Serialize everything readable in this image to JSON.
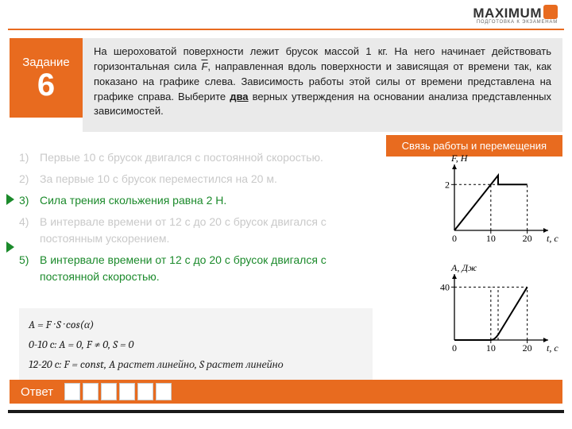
{
  "logo": {
    "text": "MAXIMUM",
    "subtitle": "ПОДГОТОВКА К ЭКЗАМЕНАМ"
  },
  "task": {
    "label": "Задание",
    "number": "6",
    "text_parts": [
      "На шероховатой поверхности лежит брусок массой 1 кг. На него начинает действовать горизонтальная сила ",
      ", направленная вдоль поверхности и зависящая от времени так, как показано на графике слева. Зависимость работы этой силы от времени представлена на графике справа. Выберите ",
      " верных утверждения на основании анализа представленных зависимостей."
    ],
    "force_sym": "F",
    "two_word": "два"
  },
  "hint": "Связь работы и перемещения",
  "options": [
    {
      "n": "1)",
      "text": "Первые 10 с брусок двигался с постоянной скоростью.",
      "cls": "wrong"
    },
    {
      "n": "2)",
      "text": "За первые 10 с брусок переместился на 20 м.",
      "cls": "wrong"
    },
    {
      "n": "3)",
      "text": "Сила трения скольжения равна 2 Н.",
      "cls": "right"
    },
    {
      "n": "4)",
      "text": "В интервале времени от 12 с до 20 с брусок двигался с постоянным ускорением.",
      "cls": "wrong"
    },
    {
      "n": "5)",
      "text": "В интервале времени от 12 с до 20 с брусок двигался с постоянной скоростью.",
      "cls": "right"
    }
  ],
  "formulas": {
    "l1": "A = F · S · cos(α)",
    "l2": "0-10 c: A = 0, F ≠ 0, S = 0",
    "l3": "12-20 c: F = const, A растет линейно, S растет линейно"
  },
  "answer_label": "Ответ",
  "answer_cells": 6,
  "chart1": {
    "ylabel": "F, Н",
    "xlabel": "t, с",
    "yticks": [
      "2"
    ],
    "xticks": [
      "0",
      "10",
      "20"
    ],
    "ylim": 2.6,
    "xlim": 24,
    "peak_y": 2.4,
    "flat_y": 2,
    "x_peak": 12,
    "x_flat_start": 12,
    "x_flat_end": 20,
    "color": "#000"
  },
  "chart2": {
    "ylabel": "A, Дж",
    "xlabel": "t, с",
    "yticks": [
      "40"
    ],
    "xticks": [
      "0",
      "10",
      "20"
    ],
    "ylim": 45,
    "xlim": 24,
    "x_rise_start": 10,
    "x_rise_knee": 12,
    "x_end": 20,
    "y_end": 40,
    "y_knee": 4,
    "color": "#000"
  },
  "colors": {
    "accent": "#e86b1f",
    "right": "#1b8a2b",
    "faded": "#c9c9c9"
  }
}
